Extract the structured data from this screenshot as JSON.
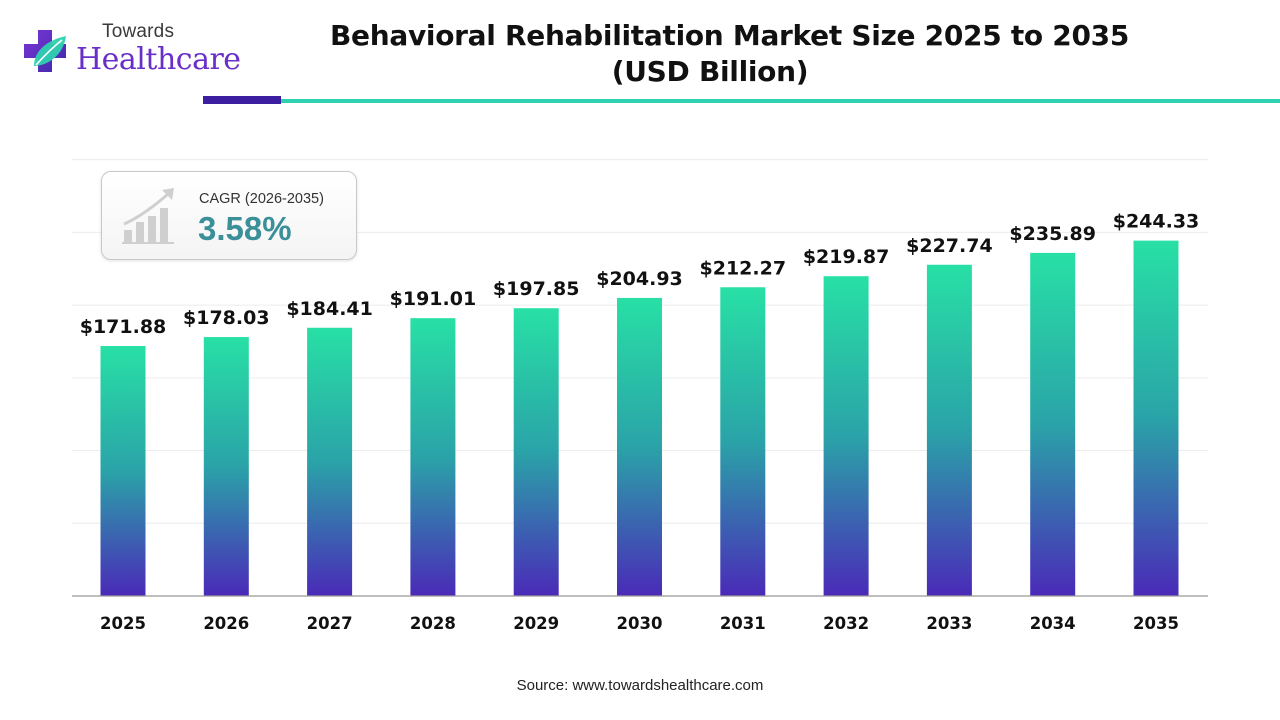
{
  "brand": {
    "top_word": "Towards",
    "main_word": "Healthcare",
    "colors": {
      "purple": "#6a2fc9",
      "teal": "#2ed1b0",
      "navy": "#3b1fa0"
    }
  },
  "title": {
    "line1": "Behavioral Rehabilitation Market Size 2025 to 2035",
    "line2": "(USD Billion)"
  },
  "cagr": {
    "label": "CAGR (2026-2035)",
    "value": "3.58%",
    "icon": "growth-bar-chart-icon"
  },
  "source": "Source: www.towardshealthcare.com",
  "chart_data": {
    "type": "bar",
    "categories": [
      "2025",
      "2026",
      "2027",
      "2028",
      "2029",
      "2030",
      "2031",
      "2032",
      "2033",
      "2034",
      "2035"
    ],
    "values": [
      171.88,
      178.03,
      184.41,
      191.01,
      197.85,
      204.93,
      212.27,
      219.87,
      227.74,
      235.89,
      244.33
    ],
    "value_labels": [
      "$171.88",
      "$178.03",
      "$184.41",
      "$191.01",
      "$197.85",
      "$204.93",
      "$212.27",
      "$219.87",
      "$227.74",
      "$235.89",
      "$244.33"
    ],
    "title": "Behavioral Rehabilitation Market Size 2025 to 2035 (USD Billion)",
    "xlabel": "",
    "ylabel": "",
    "ylim": [
      0,
      300
    ],
    "grid": true,
    "legend": "none",
    "bar_gradient": {
      "top": "#28e0a5",
      "bottom": "#4a2ab8"
    }
  }
}
